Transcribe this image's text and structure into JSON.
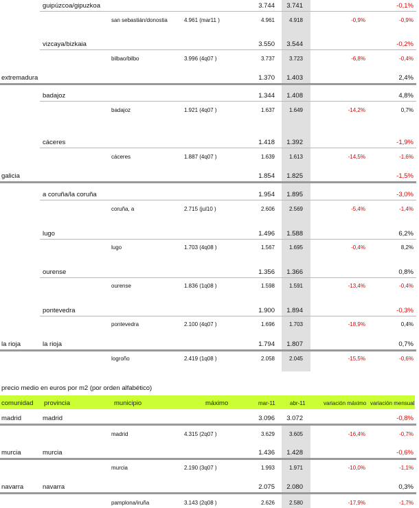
{
  "section1": {
    "rows": [
      {
        "type": "prov",
        "comunidad": "",
        "provincia": "guipúzcoa/gipuzkoa",
        "mar": "3.744",
        "abr": "3.741",
        "var_max": "",
        "var_mes": "-0,1%",
        "var_mes_neg": true
      },
      {
        "type": "mun",
        "municipio": "san sebastián/donostia",
        "maximo": "4.961 (mar11 )",
        "mar": "4.961",
        "abr": "4.918",
        "var_max": "-0,9%",
        "var_mes": "-0,9%",
        "var_mes_neg": true
      },
      {
        "type": "prov",
        "comunidad": "",
        "provincia": "vizcaya/bizkaia",
        "mar": "3.550",
        "abr": "3.544",
        "var_max": "",
        "var_mes": "-0,2%",
        "var_mes_neg": true
      },
      {
        "type": "mun",
        "municipio": "bilbao/bilbo",
        "maximo": "3.996 (4q07 )",
        "mar": "3.737",
        "abr": "3.723",
        "var_max": "-6,8%",
        "var_mes": "-0,4%",
        "var_mes_neg": true
      },
      {
        "type": "com",
        "comunidad": "extremadura",
        "provincia": "",
        "mar": "1.370",
        "abr": "1.403",
        "var_max": "",
        "var_mes": "2,4%",
        "var_mes_neg": false
      },
      {
        "type": "prov",
        "comunidad": "",
        "provincia": "badajoz",
        "mar": "1.344",
        "abr": "1.408",
        "var_max": "",
        "var_mes": "4,8%",
        "var_mes_neg": false
      },
      {
        "type": "mun",
        "municipio": "badajoz",
        "maximo": "1.921 (4q07 )",
        "mar": "1.637",
        "abr": "1.649",
        "var_max": "-14,2%",
        "var_mes": "0,7%",
        "var_mes_neg": false
      },
      {
        "type": "prov",
        "comunidad": "",
        "provincia": "cáceres",
        "mar": "1.418",
        "abr": "1.392",
        "var_max": "",
        "var_mes": "-1,9%",
        "var_mes_neg": true
      },
      {
        "type": "mun",
        "municipio": "cáceres",
        "maximo": "1.887 (4q07 )",
        "mar": "1.639",
        "abr": "1.613",
        "var_max": "-14,5%",
        "var_mes": "-1,6%",
        "var_mes_neg": true
      },
      {
        "type": "com",
        "comunidad": "galicia",
        "provincia": "",
        "mar": "1.854",
        "abr": "1.825",
        "var_max": "",
        "var_mes": "-1,5%",
        "var_mes_neg": true
      },
      {
        "type": "prov",
        "comunidad": "",
        "provincia": "a coruña/la coruña",
        "mar": "1.954",
        "abr": "1.895",
        "var_max": "",
        "var_mes": "-3,0%",
        "var_mes_neg": true
      },
      {
        "type": "mun",
        "municipio": "coruña, a",
        "maximo": "2.715 (jul10 )",
        "mar": "2.606",
        "abr": "2.569",
        "var_max": "-5,4%",
        "var_mes": "-1,4%",
        "var_mes_neg": true
      },
      {
        "type": "prov",
        "comunidad": "",
        "provincia": "lugo",
        "mar": "1.496",
        "abr": "1.588",
        "var_max": "",
        "var_mes": "6,2%",
        "var_mes_neg": false
      },
      {
        "type": "mun",
        "municipio": "lugo",
        "maximo": "1.703 (4q08 )",
        "mar": "1.567",
        "abr": "1.695",
        "var_max": "-0,4%",
        "var_mes": "8,2%",
        "var_mes_neg": false
      },
      {
        "type": "prov",
        "comunidad": "",
        "provincia": "ourense",
        "mar": "1.356",
        "abr": "1.366",
        "var_max": "",
        "var_mes": "0,8%",
        "var_mes_neg": false
      },
      {
        "type": "mun",
        "municipio": "ourense",
        "maximo": "1.836 (1q08 )",
        "mar": "1.598",
        "abr": "1.591",
        "var_max": "-13,4%",
        "var_mes": "-0,4%",
        "var_mes_neg": true
      },
      {
        "type": "prov",
        "comunidad": "",
        "provincia": "pontevedra",
        "mar": "1.900",
        "abr": "1.894",
        "var_max": "",
        "var_mes": "-0,3%",
        "var_mes_neg": true
      },
      {
        "type": "mun",
        "municipio": "pontevedra",
        "maximo": "2.100 (4q07 )",
        "mar": "1.696",
        "abr": "1.703",
        "var_max": "-18,9%",
        "var_mes": "0,4%",
        "var_mes_neg": false
      },
      {
        "type": "com",
        "comunidad": "la rioja",
        "provincia": "la rioja",
        "mar": "1.794",
        "abr": "1.807",
        "var_max": "",
        "var_mes": "0,7%",
        "var_mes_neg": false
      },
      {
        "type": "mun",
        "municipio": "logroño",
        "maximo": "2.419 (1q08 )",
        "mar": "2.058",
        "abr": "2.045",
        "var_max": "-15,5%",
        "var_mes": "-0,6%",
        "var_mes_neg": true
      }
    ]
  },
  "section2": {
    "title": "precio medio en euros por m2 (por orden alfabético)",
    "header": {
      "comunidad": "comunidad",
      "provincia": "provincia",
      "municipio": "municipio",
      "maximo": "máximo",
      "mar": "mar-11",
      "abr": "abr-11",
      "var_max": "variación máximo",
      "var_mes": "variación mensual",
      "bg_color": "#ccff33"
    },
    "rows": [
      {
        "type": "com",
        "comunidad": "madrid",
        "provincia": "madrid",
        "mar": "3.096",
        "abr": "3.072",
        "var_max": "",
        "var_mes": "-0,8%",
        "var_mes_neg": true
      },
      {
        "type": "mun",
        "municipio": "madrid",
        "maximo": "4.315 (2q07 )",
        "mar": "3.629",
        "abr": "3.605",
        "var_max": "-16,4%",
        "var_mes": "-0,7%",
        "var_mes_neg": true
      },
      {
        "type": "com",
        "comunidad": "murcia",
        "provincia": "murcia",
        "mar": "1.436",
        "abr": "1.428",
        "var_max": "",
        "var_mes": "-0,6%",
        "var_mes_neg": true
      },
      {
        "type": "mun",
        "municipio": "murcia",
        "maximo": "2.190 (3q07 )",
        "mar": "1.993",
        "abr": "1.971",
        "var_max": "-10,0%",
        "var_mes": "-1,1%",
        "var_mes_neg": true
      },
      {
        "type": "com",
        "comunidad": "navarra",
        "provincia": "navarra",
        "mar": "2.075",
        "abr": "2.080",
        "var_max": "",
        "var_mes": "0,3%",
        "var_mes_neg": false
      },
      {
        "type": "mun",
        "municipio": "pamplona/iruña",
        "maximo": "3.143 (2q08 )",
        "mar": "2.626",
        "abr": "2.580",
        "var_max": "-17,9%",
        "var_mes": "-1,7%",
        "var_mes_neg": true
      }
    ]
  },
  "colors": {
    "negative": "#e00000",
    "shaded_column": "#e0e0e0",
    "header_bg": "#ccff33",
    "rule_thin": "#b8b8b8",
    "rule_thick": "#999999"
  }
}
